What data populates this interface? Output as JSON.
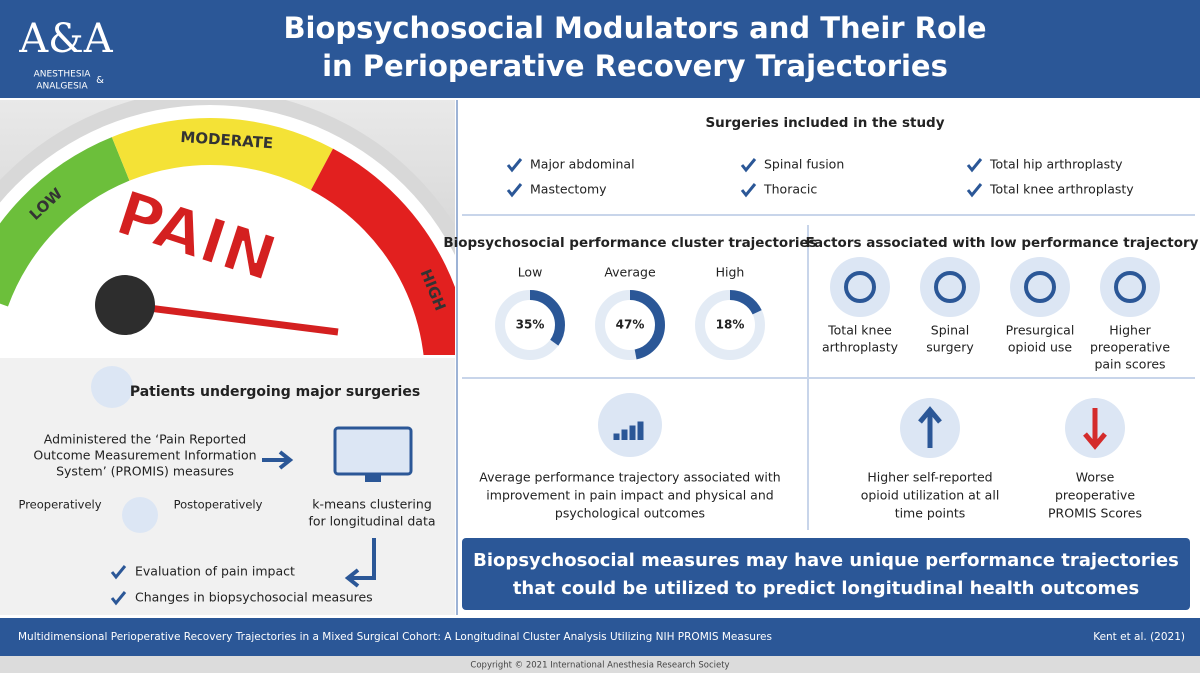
{
  "header": {
    "title": [
      "Biopsychosocial Modulators and Their Role",
      "in Perioperative Recovery Trajectories"
    ]
  },
  "logo": {
    "monogram": "A&A",
    "name": [
      "ANESTHESIA",
      "ANALGESIA"
    ],
    "ampersand": "&"
  },
  "gauge": {
    "levels": [
      "LOW",
      "MODERATE",
      "HIGH"
    ],
    "word": "PAIN"
  },
  "patients": {
    "title": "Patients undergoing major surgeries",
    "measures": [
      "Administered the ‘Pain Reported",
      "Outcome Measurement Information",
      "System’ (PROMIS) measures"
    ],
    "timing": [
      "Preoperatively",
      "Postoperatively"
    ],
    "method": [
      "k-means clustering",
      "for longitudinal data"
    ],
    "outcomes": [
      "Evaluation of pain impact",
      "Changes in biopsychosocial measures"
    ]
  },
  "surgeries": {
    "title": "Surgeries included in the study",
    "items": [
      "Major abdominal",
      "Spinal fusion",
      "Total hip arthroplasty",
      "Mastectomy",
      "Thoracic",
      "Total knee arthroplasty"
    ]
  },
  "clusters": {
    "title": "Biopsychosocial performance cluster trajectories",
    "categories": [
      "Low",
      "Average",
      "High"
    ],
    "values": [
      35,
      47,
      18
    ],
    "value_labels": [
      "35%",
      "47%",
      "18%"
    ],
    "finding": [
      "Average performance trajectory associated with",
      "improvement in pain impact and physical and",
      "psychological outcomes"
    ]
  },
  "factors": {
    "title": "Factors associated with low performance trajectory",
    "items": [
      [
        "Total knee",
        "arthroplasty"
      ],
      [
        "Spinal",
        "surgery"
      ],
      [
        "Presurgical",
        "opioid use"
      ],
      [
        "Higher",
        "preoperative",
        "pain scores"
      ]
    ],
    "findings": [
      [
        "Higher self-reported",
        "opioid utilization at all",
        "time points"
      ],
      [
        "Worse",
        "preoperative",
        "PROMIS Scores"
      ]
    ]
  },
  "conclusion": [
    "Biopsychosocial measures may have unique performance trajectories",
    "that could be utilized to predict longitudinal health outcomes"
  ],
  "footer": {
    "citation": "Multidimensional Perioperative Recovery Trajectories in a Mixed Surgical Cohort: A Longitudinal Cluster Analysis Utilizing NIH PROMIS Measures",
    "authors": "Kent et al. (2021)",
    "copyright": "Copyright © 2021 International Anesthesia Research Society"
  }
}
